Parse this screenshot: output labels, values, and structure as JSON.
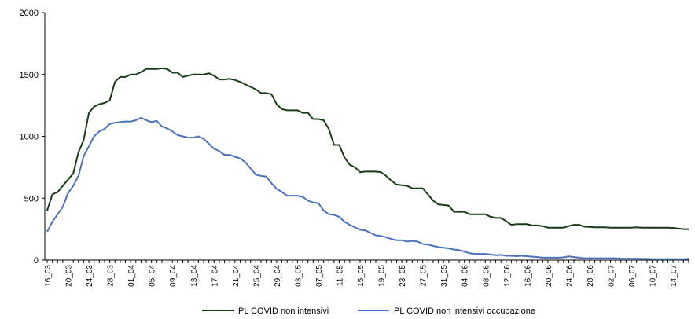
{
  "chart_data": {
    "type": "line",
    "categories": [
      "16_03",
      null,
      null,
      null,
      "20_03",
      null,
      null,
      null,
      "24_03",
      null,
      null,
      null,
      "28_03",
      null,
      null,
      null,
      "01_04",
      null,
      null,
      null,
      "05_04",
      null,
      null,
      null,
      "09_04",
      null,
      null,
      null,
      "13_04",
      null,
      null,
      null,
      "17_04",
      null,
      null,
      null,
      "21_04",
      null,
      null,
      null,
      "25_04",
      null,
      null,
      null,
      "29_04",
      null,
      null,
      null,
      "03_05",
      null,
      null,
      null,
      "07_05",
      null,
      null,
      null,
      "11_05",
      null,
      null,
      null,
      "15_05",
      null,
      null,
      null,
      "19_05",
      null,
      null,
      null,
      "23_05",
      null,
      null,
      null,
      "27_05",
      null,
      null,
      null,
      "31_05",
      null,
      null,
      null,
      "04_06",
      null,
      null,
      null,
      "08_06",
      null,
      null,
      null,
      "12_06",
      null,
      null,
      null,
      "16_06",
      null,
      null,
      null,
      "20_06",
      null,
      null,
      null,
      "24_06",
      null,
      null,
      null,
      "28_06",
      null,
      null,
      null,
      "02_07",
      null,
      null,
      null,
      "06_07",
      null,
      null,
      null,
      "10_07",
      null,
      null,
      null,
      "14_07",
      null,
      null,
      null
    ],
    "series": [
      {
        "name": "PL COVID non intensivi",
        "color": "#173d17",
        "values": [
          400,
          530,
          550,
          600,
          650,
          700,
          870,
          970,
          1190,
          1240,
          1260,
          1270,
          1290,
          1440,
          1480,
          1480,
          1500,
          1500,
          1520,
          1545,
          1545,
          1545,
          1550,
          1545,
          1515,
          1515,
          1480,
          1490,
          1500,
          1500,
          1500,
          1510,
          1490,
          1460,
          1460,
          1465,
          1455,
          1440,
          1420,
          1400,
          1380,
          1350,
          1350,
          1340,
          1260,
          1220,
          1210,
          1210,
          1210,
          1190,
          1190,
          1140,
          1140,
          1130,
          1060,
          930,
          930,
          830,
          770,
          750,
          710,
          715,
          715,
          715,
          710,
          680,
          640,
          610,
          605,
          600,
          580,
          580,
          580,
          530,
          480,
          450,
          445,
          440,
          390,
          390,
          390,
          370,
          370,
          370,
          370,
          350,
          340,
          340,
          315,
          285,
          290,
          290,
          290,
          280,
          280,
          275,
          262,
          262,
          262,
          262,
          275,
          285,
          285,
          270,
          268,
          265,
          265,
          265,
          262,
          262,
          262,
          262,
          262,
          265,
          262,
          262,
          262,
          262,
          262,
          262,
          260,
          255,
          250,
          250
        ]
      },
      {
        "name": "PL COVID non intensivi occupazione",
        "color": "#4a72c0",
        "values": [
          230,
          310,
          370,
          430,
          540,
          600,
          680,
          840,
          920,
          1000,
          1040,
          1060,
          1100,
          1110,
          1115,
          1120,
          1120,
          1130,
          1150,
          1130,
          1115,
          1125,
          1080,
          1065,
          1040,
          1010,
          1000,
          990,
          990,
          1000,
          980,
          940,
          900,
          880,
          850,
          850,
          835,
          820,
          790,
          740,
          690,
          680,
          675,
          620,
          575,
          550,
          520,
          520,
          520,
          510,
          480,
          465,
          460,
          400,
          370,
          365,
          350,
          310,
          285,
          265,
          245,
          240,
          220,
          200,
          195,
          185,
          170,
          160,
          160,
          150,
          155,
          150,
          130,
          125,
          115,
          105,
          100,
          95,
          85,
          80,
          70,
          55,
          50,
          50,
          50,
          45,
          40,
          42,
          35,
          35,
          32,
          35,
          32,
          28,
          25,
          20,
          20,
          20,
          20,
          22,
          30,
          25,
          20,
          15,
          15,
          15,
          15,
          15,
          15,
          15,
          12,
          12,
          12,
          12,
          10,
          10,
          8,
          8,
          8,
          8,
          8,
          8,
          8,
          10
        ]
      }
    ],
    "ylim": [
      0,
      2000
    ],
    "yticks": [
      0,
      500,
      1000,
      1500,
      2000
    ],
    "grid": false,
    "legend": "bottom"
  }
}
